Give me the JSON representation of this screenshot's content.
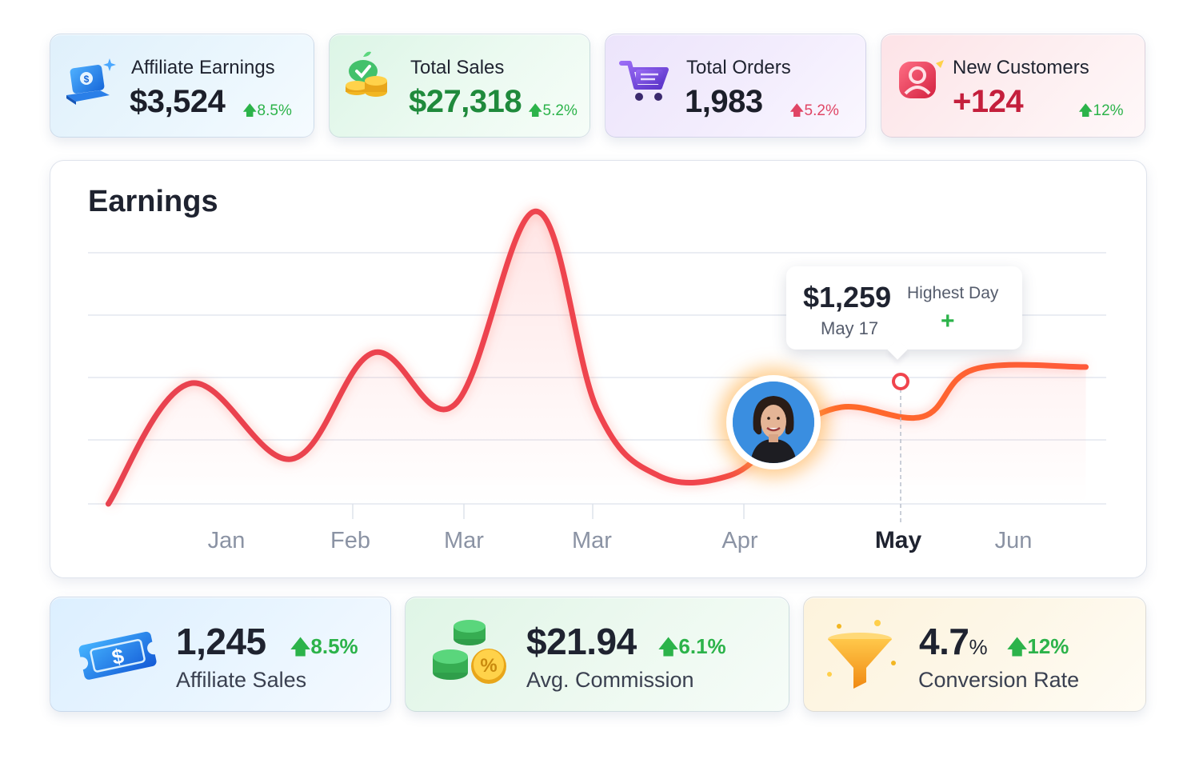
{
  "stats": [
    {
      "label": "Affiliate Earnings",
      "value": "$3,524",
      "delta": "8.5%",
      "icon": "laptop-money-icon",
      "value_color": "#1c1f2a",
      "delta_color": "#2cb34a"
    },
    {
      "label": "Total Sales",
      "value": "$27,318",
      "delta": "5.2%",
      "icon": "coins-stack-icon",
      "value_color": "#1f8a3c",
      "delta_color": "#2cb34a"
    },
    {
      "label": "Total Orders",
      "value": "1,983",
      "delta": "5.2%",
      "icon": "shopping-cart-icon",
      "value_color": "#1c1f2a",
      "delta_color": "#e04565"
    },
    {
      "label": "New Customers",
      "value": "+124",
      "delta": "12%",
      "icon": "user-badge-icon",
      "value_color": "#c41f3c",
      "delta_color": "#2cb34a"
    }
  ],
  "earnings": {
    "title": "Earnings",
    "tooltip": {
      "value": "$1,259",
      "label": "Highest Day",
      "date": "May 17",
      "marker": "+"
    },
    "highlight_month": "May",
    "line_color": "#f0444d"
  },
  "chart_data": {
    "type": "line",
    "title": "Earnings",
    "categories": [
      "Jan",
      "Feb",
      "Mar",
      "Mar",
      "Apr",
      "May",
      "Jun"
    ],
    "x": [
      0.2,
      1.0,
      2.0,
      2.8,
      3.6,
      4.4,
      5.0,
      5.6,
      6.3,
      6.8,
      7.4,
      8.2,
      8.7,
      9.8
    ],
    "y": [
      0,
      2.55,
      0.95,
      3.2,
      2.1,
      6.2,
      2.0,
      0.6,
      0.6,
      1.4,
      2.05,
      1.85,
      2.85,
      2.9
    ],
    "xlabel": "",
    "ylabel": "",
    "ylim": [
      0,
      4
    ],
    "grid": true,
    "highlight_point": {
      "month": "May",
      "value": "$1,259",
      "date": "May 17"
    }
  },
  "bottom_stats": [
    {
      "value": "1,245",
      "unit": "",
      "delta": "8.5%",
      "label": "Affiliate Sales",
      "icon": "dollar-ticket-icon"
    },
    {
      "value": "$21.94",
      "unit": "",
      "delta": "6.1%",
      "label": "Avg. Commission",
      "icon": "coins-percent-icon"
    },
    {
      "value": "4.7",
      "unit": "%",
      "delta": "12%",
      "label": "Conversion Rate",
      "icon": "funnel-icon"
    }
  ]
}
